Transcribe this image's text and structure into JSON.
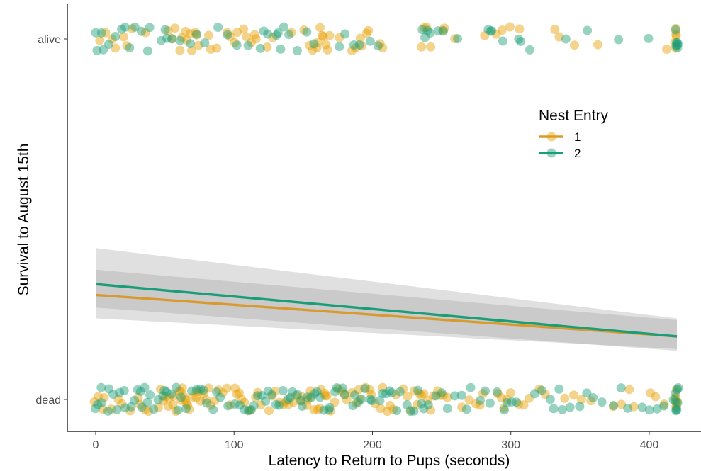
{
  "chart_data": {
    "type": "scatter",
    "xlabel": "Latency to Return to Pups (seconds)",
    "ylabel": "Survival to August 15th",
    "xlim": [
      -20,
      427
    ],
    "x_ticks": [
      0,
      100,
      200,
      300,
      400
    ],
    "y_categories": [
      "dead",
      "alive"
    ],
    "legend": {
      "title": "Nest Entry",
      "position": "right",
      "entries": [
        "1",
        "2"
      ]
    },
    "grid": false,
    "colors": {
      "1": "#e69f00",
      "2": "#1b9e77"
    },
    "points": {
      "1": {
        "alive": [
          3,
          8,
          12,
          15,
          20,
          23,
          26,
          36,
          52,
          55,
          58,
          60,
          63,
          64,
          66,
          68,
          70,
          72,
          73,
          75,
          82,
          84,
          88,
          95,
          97,
          100,
          103,
          107,
          110,
          112,
          114,
          116,
          124,
          128,
          142,
          150,
          155,
          156,
          159,
          160,
          162,
          164,
          165,
          166,
          168,
          170,
          176,
          186,
          188,
          191,
          193,
          195,
          198,
          205,
          207,
          236,
          238,
          240,
          242,
          250,
          252,
          260,
          282,
          290,
          293,
          300,
          306,
          332,
          335,
          347,
          363,
          413,
          418,
          420,
          420,
          420,
          420
        ],
        "dead": [
          0,
          2,
          5,
          6,
          12,
          16,
          18,
          25,
          30,
          32,
          35,
          38,
          45,
          47,
          48,
          50,
          52,
          53,
          55,
          57,
          58,
          60,
          61,
          62,
          63,
          64,
          65,
          66,
          67,
          68,
          70,
          72,
          73,
          75,
          76,
          78,
          80,
          82,
          84,
          86,
          88,
          92,
          95,
          98,
          100,
          102,
          104,
          105,
          108,
          110,
          112,
          115,
          118,
          120,
          125,
          128,
          130,
          132,
          135,
          138,
          140,
          142,
          145,
          148,
          150,
          152,
          153,
          155,
          156,
          158,
          160,
          162,
          163,
          165,
          166,
          168,
          170,
          172,
          175,
          178,
          180,
          182,
          185,
          188,
          190,
          192,
          195,
          198,
          200,
          202,
          205,
          208,
          210,
          212,
          215,
          218,
          222,
          225,
          228,
          230,
          232,
          235,
          236,
          238,
          240,
          242,
          245,
          248,
          250,
          252,
          255,
          265,
          270,
          274,
          278,
          280,
          290,
          293,
          295,
          298,
          300,
          305,
          310,
          314,
          320,
          325,
          340,
          345,
          352,
          358,
          375,
          380,
          385,
          388,
          400,
          405,
          410,
          418,
          420,
          420,
          420,
          420,
          420,
          420
        ]
      },
      "2": {
        "alive": [
          0,
          2,
          4,
          6,
          10,
          14,
          18,
          22,
          24,
          28,
          34,
          38,
          40,
          48,
          50,
          52,
          56,
          62,
          68,
          72,
          78,
          88,
          96,
          102,
          110,
          118,
          122,
          124,
          130,
          132,
          134,
          135,
          140,
          145,
          152,
          158,
          176,
          180,
          186,
          190,
          198,
          205,
          235,
          238,
          240,
          242,
          248,
          252,
          262,
          284,
          285,
          287,
          295,
          306,
          308,
          313,
          340,
          355,
          377,
          400,
          420,
          420,
          420,
          420,
          420,
          420,
          420
        ],
        "dead": [
          0,
          1,
          3,
          5,
          8,
          10,
          12,
          15,
          18,
          20,
          22,
          25,
          28,
          30,
          32,
          34,
          35,
          38,
          40,
          42,
          45,
          48,
          50,
          52,
          55,
          58,
          60,
          62,
          65,
          70,
          72,
          75,
          78,
          80,
          85,
          88,
          90,
          95,
          100,
          105,
          108,
          110,
          112,
          115,
          118,
          120,
          122,
          125,
          128,
          130,
          132,
          135,
          138,
          140,
          142,
          145,
          148,
          150,
          152,
          155,
          158,
          160,
          162,
          165,
          168,
          170,
          172,
          175,
          178,
          180,
          185,
          188,
          190,
          192,
          195,
          198,
          200,
          205,
          208,
          210,
          212,
          215,
          218,
          220,
          225,
          228,
          230,
          232,
          235,
          238,
          240,
          245,
          250,
          255,
          260,
          265,
          268,
          270,
          278,
          282,
          285,
          290,
          295,
          298,
          300,
          305,
          318,
          322,
          328,
          330,
          335,
          338,
          342,
          350,
          355,
          360,
          365,
          375,
          380,
          385,
          395,
          400,
          405,
          410,
          418,
          420,
          420,
          420,
          420,
          420,
          420,
          420,
          420
        ]
      }
    },
    "fitted_lines": [
      {
        "group": "1",
        "x": [
          0,
          420
        ],
        "y_prob": [
          0.29,
          0.175
        ]
      },
      {
        "group": "2",
        "x": [
          0,
          420
        ],
        "y_prob": [
          0.32,
          0.175
        ]
      }
    ],
    "ci_bands": [
      {
        "group": "1",
        "x": [
          0,
          420
        ],
        "lower": [
          0.225,
          0.14
        ],
        "upper": [
          0.36,
          0.22
        ]
      },
      {
        "group": "2",
        "x": [
          0,
          420
        ],
        "lower": [
          0.255,
          0.135
        ],
        "upper": [
          0.42,
          0.225
        ]
      }
    ]
  }
}
